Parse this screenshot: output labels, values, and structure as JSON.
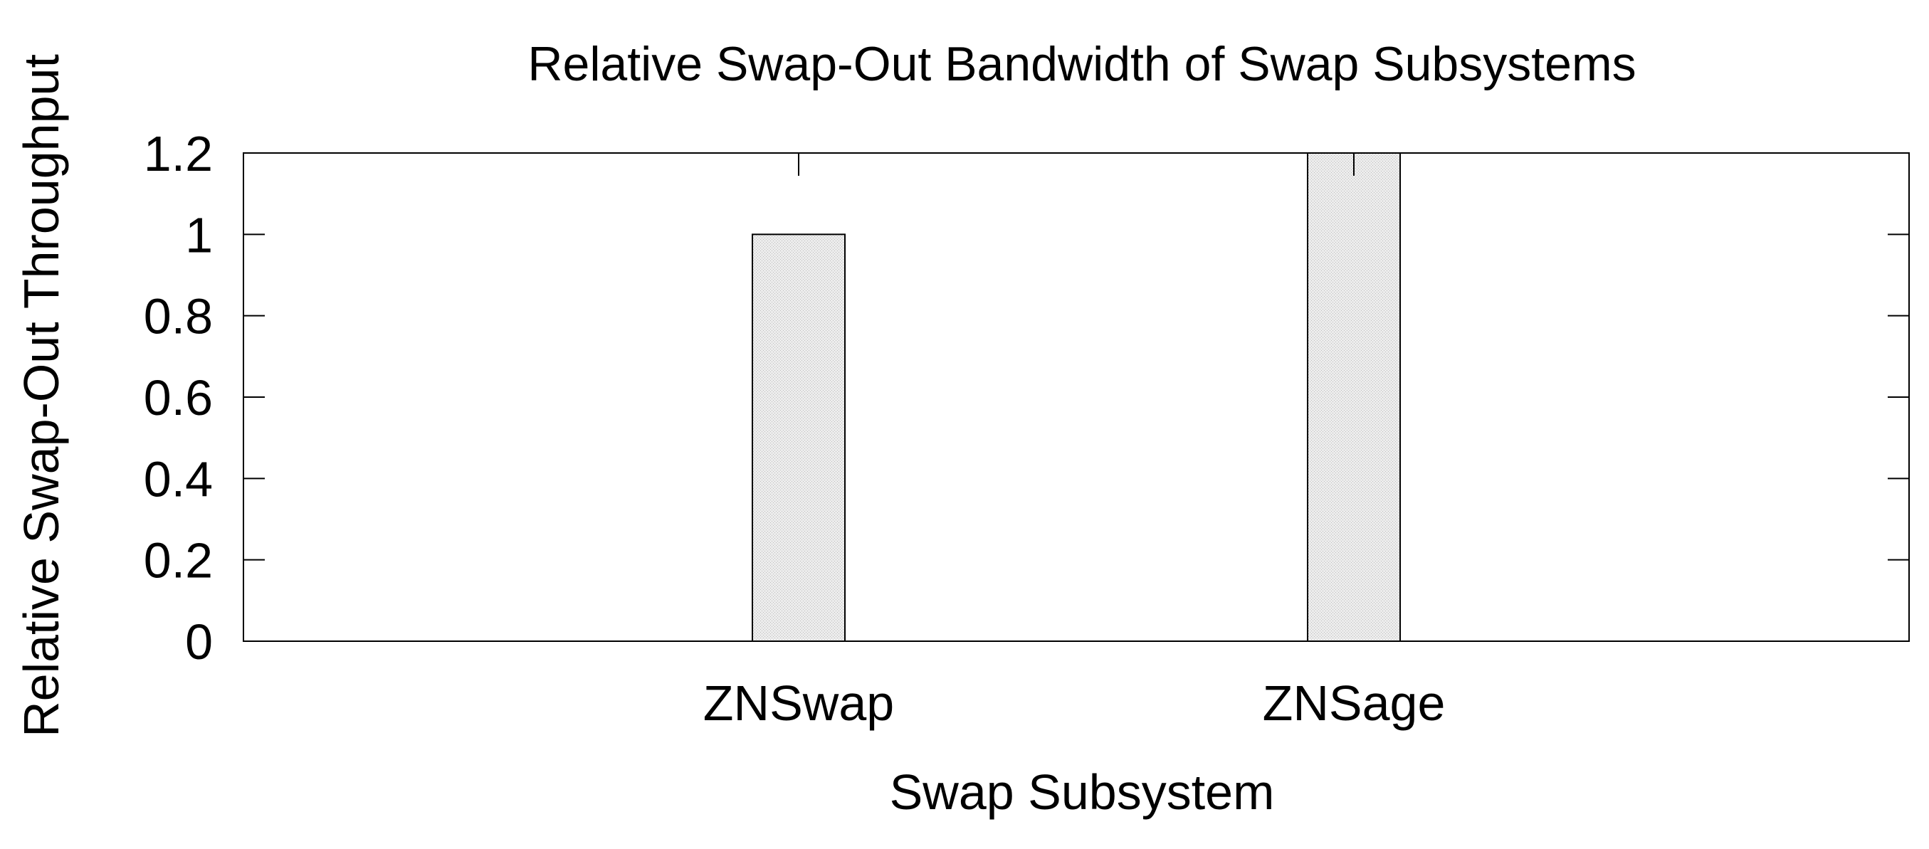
{
  "chart_data": {
    "type": "bar",
    "title": "Relative Swap-Out Bandwidth of Swap Subsystems",
    "xlabel": "Swap Subsystem",
    "ylabel": "Relative Swap-Out Throughput",
    "categories": [
      "ZNSwap",
      "ZNSage"
    ],
    "values": [
      1.0,
      1.2
    ],
    "ylim": [
      0,
      1.2
    ],
    "yticks": [
      "0",
      "0.2",
      "0.4",
      "0.6",
      "0.8",
      "1",
      "1.2"
    ],
    "grid": false,
    "legend": "none",
    "bar_fill": "#e6e6e6",
    "bar_stroke": "#000000"
  }
}
